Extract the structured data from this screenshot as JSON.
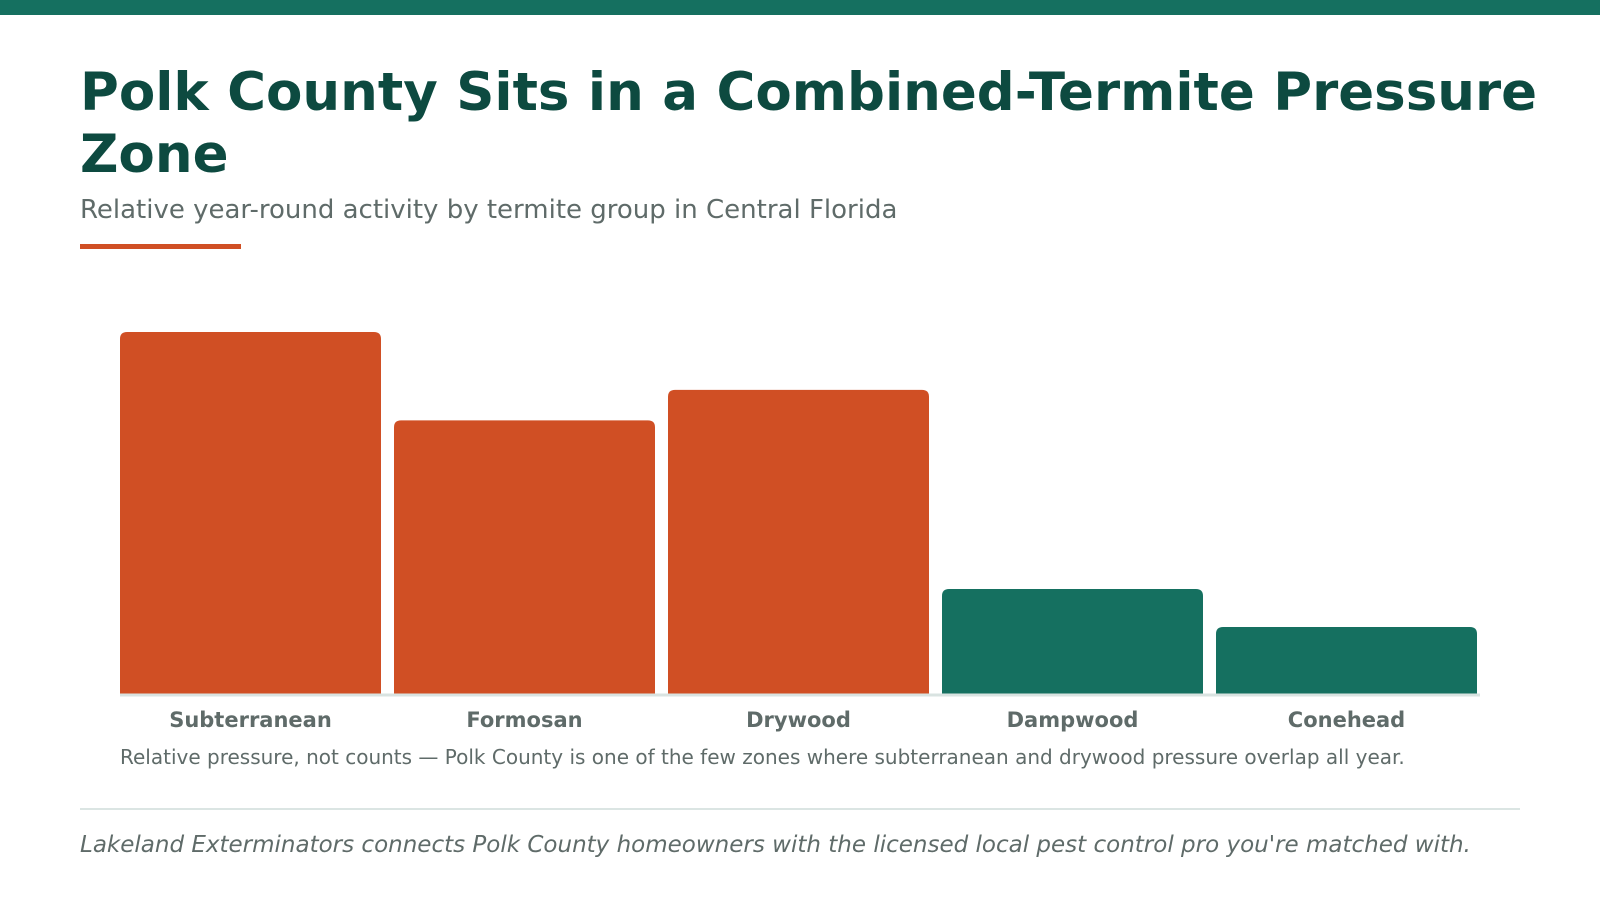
{
  "header": {
    "title": "Polk County Sits in a Combined-Termite Pressure Zone",
    "subtitle": "Relative year-round activity by termite group in Central Florida"
  },
  "chart_data": {
    "type": "bar",
    "title": "Polk County Sits in a Combined-Termite Pressure Zone",
    "subtitle": "Relative year-round activity by termite group in Central Florida",
    "categories": [
      "Subterranean",
      "Formosan",
      "Drywood",
      "Dampwood",
      "Conehead"
    ],
    "values": [
      100,
      75.6,
      84,
      29,
      18.5
    ],
    "value_scale": "relative (tallest = 100)",
    "ylim": [
      0,
      100
    ],
    "xlabel": "",
    "ylabel": "",
    "grid": false,
    "legend": "none",
    "bar_colors": [
      "#d04f24",
      "#d04f24",
      "#d04f24",
      "#157060",
      "#157060"
    ],
    "note": "Relative pressure, not counts — Polk County is one of the few zones where subterranean and drywood pressure overlap all year."
  },
  "footer": {
    "text": "Lakeland Exterminators connects Polk County homeowners with the licensed local pest control pro you're matched with."
  },
  "colors": {
    "brand_dark": "#0d4a40",
    "brand_green": "#157060",
    "accent_orange": "#d04f24",
    "muted_text": "#5f6b69"
  }
}
